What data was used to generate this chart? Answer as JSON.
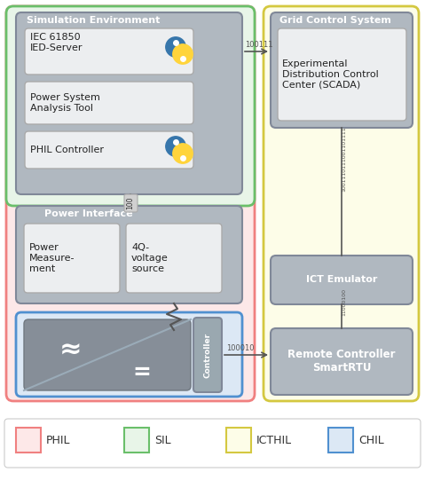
{
  "fig_width": 4.79,
  "fig_height": 5.5,
  "dpi": 100,
  "bg_color": "#ffffff",
  "legend_items": [
    {
      "label": "PHIL",
      "facecolor": "#fde8e8",
      "edgecolor": "#f08080"
    },
    {
      "label": "SIL",
      "facecolor": "#e8f5e8",
      "edgecolor": "#6abf6a"
    },
    {
      "label": "ICTHIL",
      "facecolor": "#fdfde8",
      "edgecolor": "#d4c840"
    },
    {
      "label": "CHIL",
      "facecolor": "#dce8f5",
      "edgecolor": "#5090d0"
    }
  ]
}
